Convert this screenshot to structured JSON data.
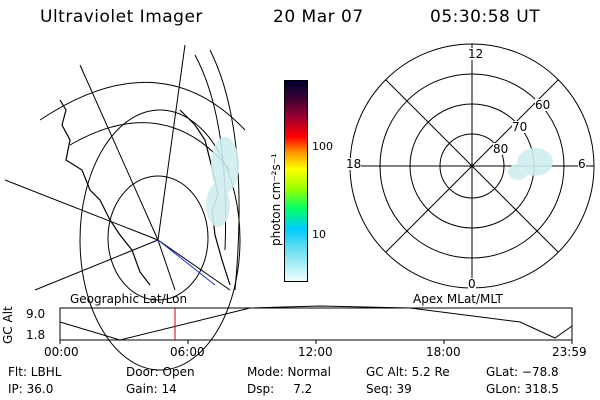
{
  "header": {
    "title": "Ultraviolet Imager",
    "date": "20 Mar 07",
    "time": "05:30:58 UT"
  },
  "colorbar": {
    "label": "photon cm⁻²s⁻¹",
    "ticks": [
      "100",
      "10"
    ],
    "colors": [
      "#000033",
      "#1a0033",
      "#330033",
      "#660033",
      "#990033",
      "#cc0000",
      "#ff0000",
      "#ff6600",
      "#ff9900",
      "#ffcc00",
      "#ffff00",
      "#ccff00",
      "#99ff00",
      "#66ff33",
      "#00ff66",
      "#00ffcc",
      "#00ccff",
      "#66ddee",
      "#ccffff",
      "#eeffff"
    ]
  },
  "polar": {
    "mlt_labels": {
      "top": "12",
      "left": "18",
      "right": "6",
      "bottom": "0"
    },
    "lat_labels": [
      "60",
      "70",
      "80"
    ]
  },
  "map_labels": {
    "left": "Geographic Lat/Lon",
    "right": "Apex MLat/MLT"
  },
  "alt_plot": {
    "ylabel": "GC Alt",
    "y_max": "9.0",
    "y_min": "1.8",
    "x_ticks": [
      "00:00",
      "06:00",
      "12:00",
      "18:00",
      "23:59"
    ],
    "marker_color": "#cc0000"
  },
  "info": {
    "flt": "Flt: LBHL",
    "ip": "IP: 36.0",
    "door": "Door: Open",
    "gain": "Gain: 14",
    "mode": "Mode: Normal",
    "dsp": "Dsp:     7.2",
    "gcalt": "GC Alt: 5.2 Re",
    "seq": "Seq: 39",
    "glat": "GLat: −78.8",
    "glon": "GLon: 318.5"
  }
}
